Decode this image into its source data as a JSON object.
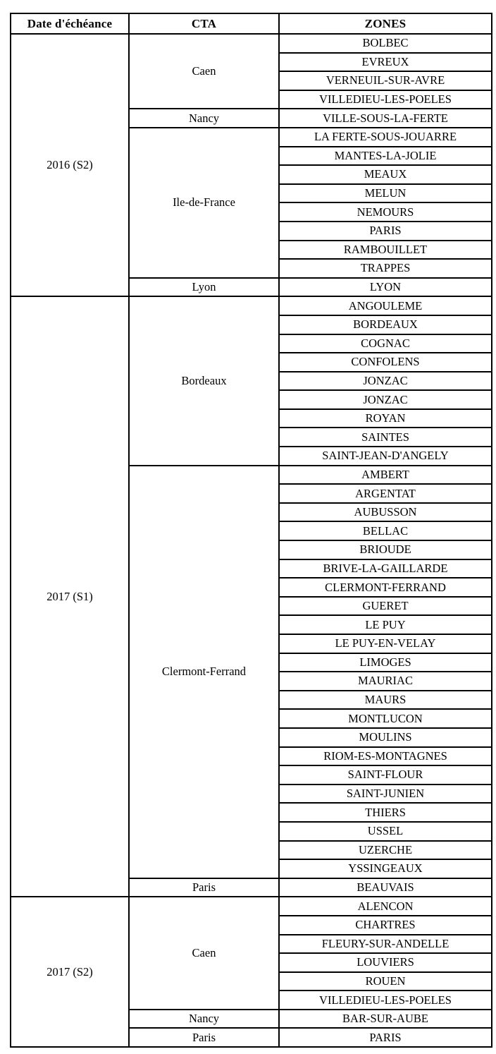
{
  "colors": {
    "border": "#000000",
    "text": "#000000",
    "background": "#ffffff"
  },
  "table": {
    "headers": [
      "Date d'échéance",
      "CTA",
      "ZONES"
    ],
    "groups": [
      {
        "date": "2016 (S2)",
        "ctas": [
          {
            "name": "Caen",
            "zones": [
              "BOLBEC",
              "EVREUX",
              "VERNEUIL-SUR-AVRE",
              "VILLEDIEU-LES-POELES"
            ]
          },
          {
            "name": "Nancy",
            "zones": [
              "VILLE-SOUS-LA-FERTE"
            ]
          },
          {
            "name": "Ile-de-France",
            "zones": [
              "LA FERTE-SOUS-JOUARRE",
              "MANTES-LA-JOLIE",
              "MEAUX",
              "MELUN",
              "NEMOURS",
              "PARIS",
              "RAMBOUILLET",
              "TRAPPES"
            ]
          },
          {
            "name": "Lyon",
            "zones": [
              "LYON"
            ]
          }
        ]
      },
      {
        "date": "2017 (S1)",
        "ctas": [
          {
            "name": "Bordeaux",
            "zones": [
              "ANGOULEME",
              "BORDEAUX",
              "COGNAC",
              "CONFOLENS",
              "JONZAC",
              "JONZAC",
              "ROYAN",
              "SAINTES",
              "SAINT-JEAN-D'ANGELY"
            ]
          },
          {
            "name": "Clermont-Ferrand",
            "zones": [
              "AMBERT",
              "ARGENTAT",
              "AUBUSSON",
              "BELLAC",
              "BRIOUDE",
              "BRIVE-LA-GAILLARDE",
              "CLERMONT-FERRAND",
              "GUERET",
              "LE PUY",
              "LE PUY-EN-VELAY",
              "LIMOGES",
              "MAURIAC",
              "MAURS",
              "MONTLUCON",
              "MOULINS",
              "RIOM-ES-MONTAGNES",
              "SAINT-FLOUR",
              "SAINT-JUNIEN",
              "THIERS",
              "USSEL",
              "UZERCHE",
              "YSSINGEAUX"
            ]
          },
          {
            "name": "Paris",
            "zones": [
              "BEAUVAIS"
            ]
          }
        ]
      },
      {
        "date": "2017 (S2)",
        "ctas": [
          {
            "name": "Caen",
            "zones": [
              "ALENCON",
              "CHARTRES",
              "FLEURY-SUR-ANDELLE",
              "LOUVIERS",
              "ROUEN",
              "VILLEDIEU-LES-POELES"
            ]
          },
          {
            "name": "Nancy",
            "zones": [
              "BAR-SUR-AUBE"
            ]
          },
          {
            "name": "Paris",
            "zones": [
              "PARIS"
            ]
          }
        ]
      }
    ]
  }
}
